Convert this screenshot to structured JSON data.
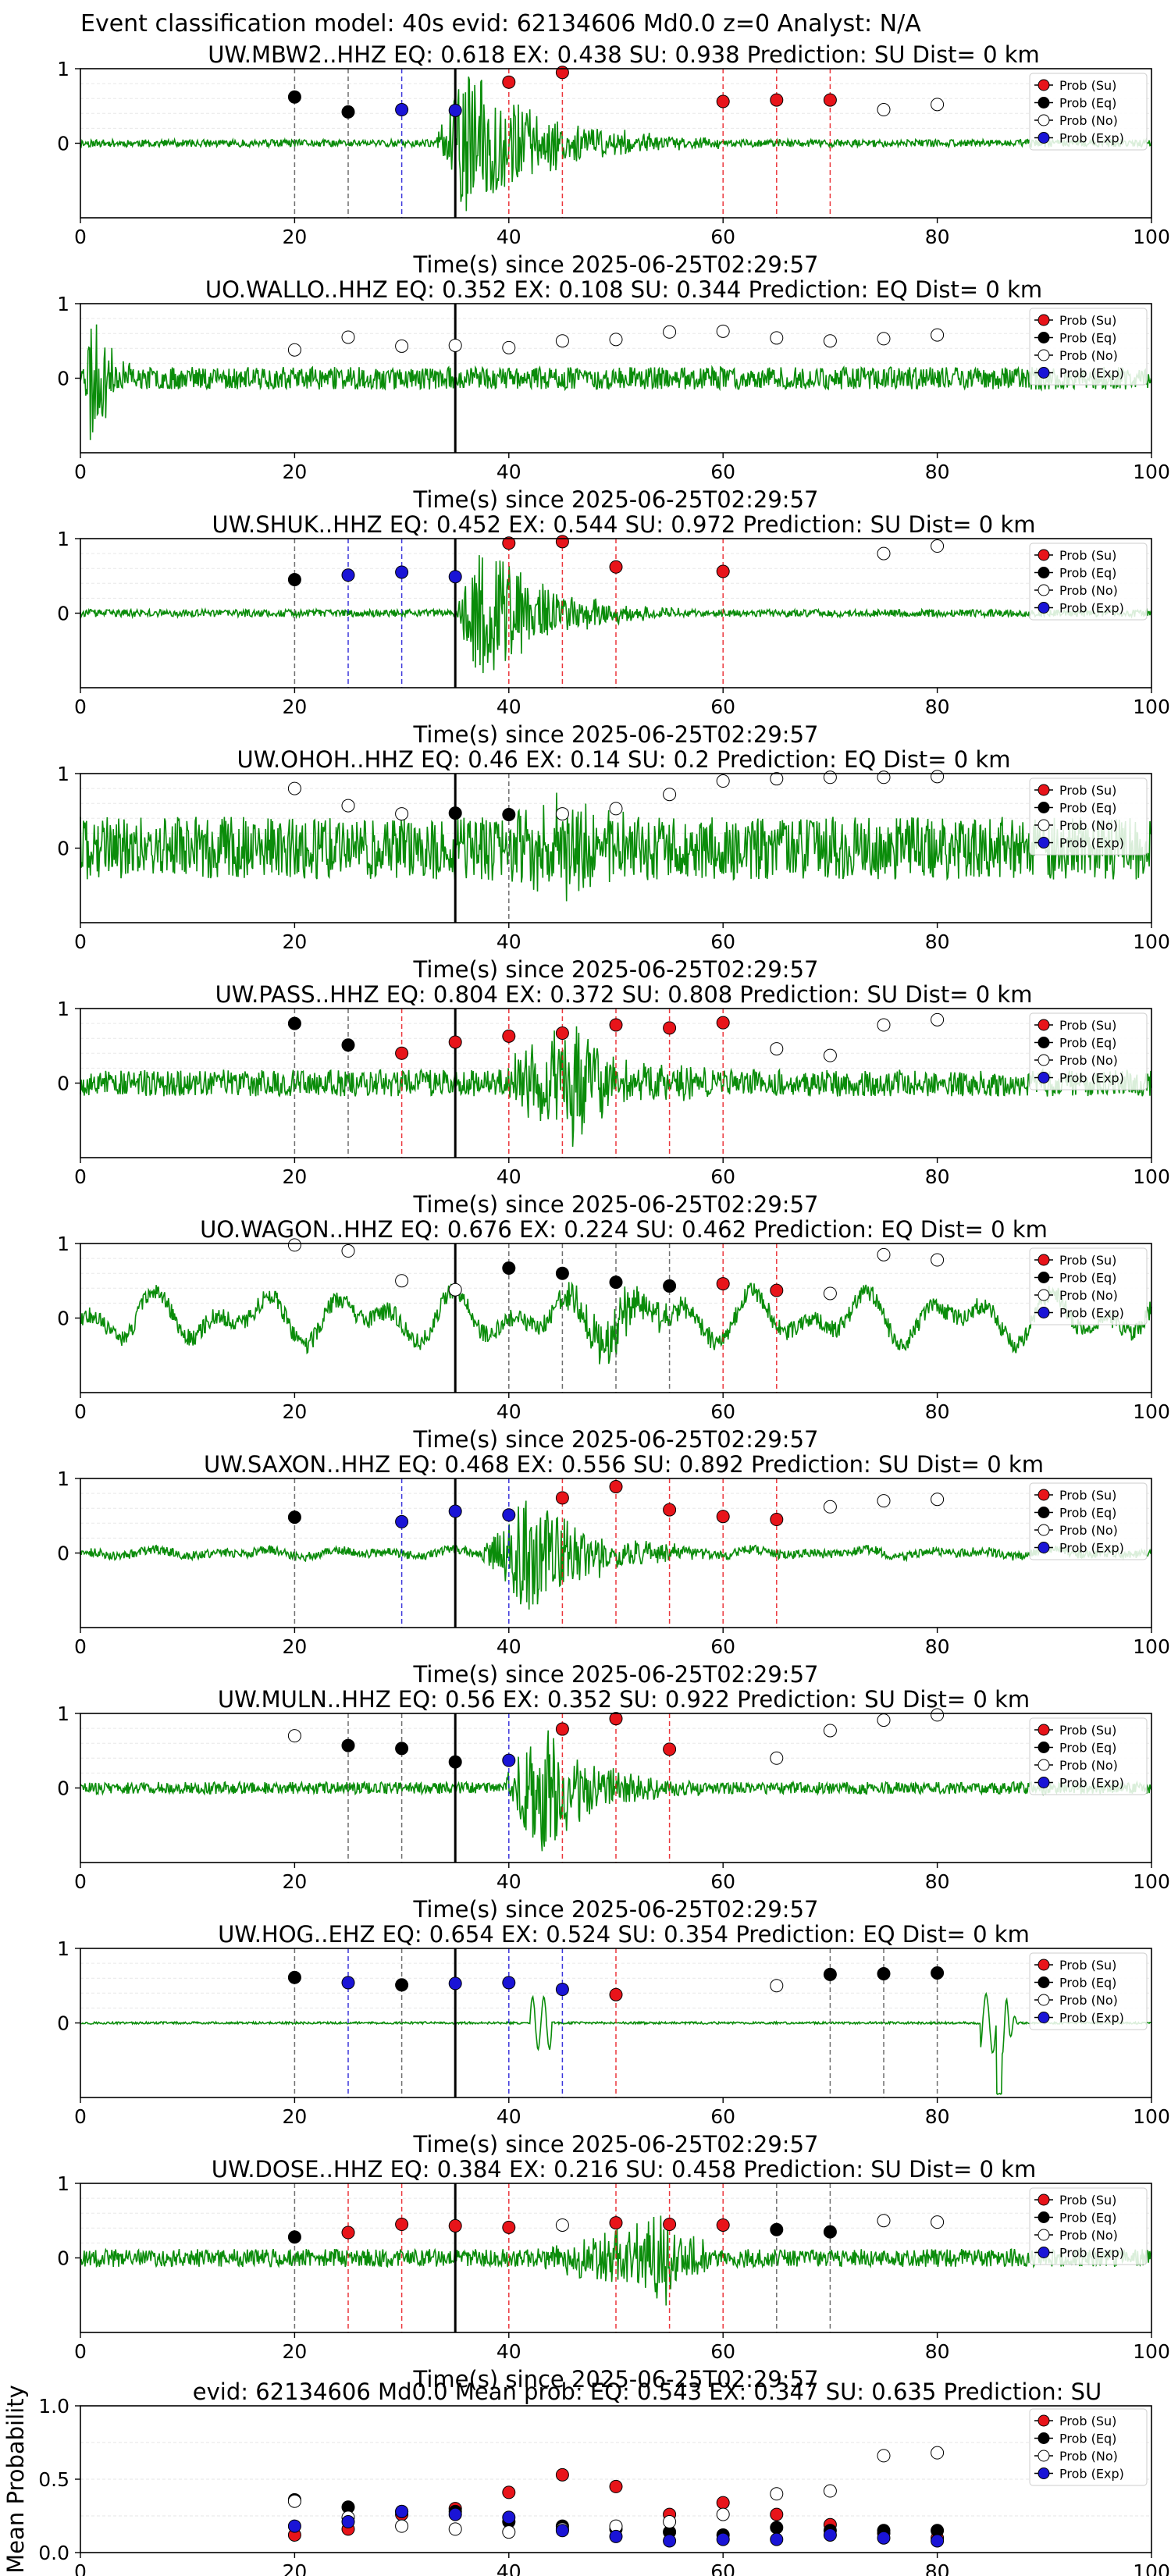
{
  "figure": {
    "title": "Event classification model: 40s evid: 62134606 Md0.0 z=0 Analyst: N/A",
    "xlabel": "Time(s) since 2025-06-25T02:29:57",
    "legend": [
      "Prob (Su)",
      "Prob (Eq)",
      "Prob (No)",
      "Prob (Exp)"
    ],
    "class_colors": {
      "su": "#e8141a",
      "eq": "#000000",
      "no": "#ffffff",
      "exp": "#1a14d6"
    },
    "trace_color": "#0a8c0a",
    "marker_line_color": "#000000"
  },
  "chart_data": [
    {
      "type": "line",
      "station": "UW.MBW2..HHZ",
      "title": "UW.MBW2..HHZ   EQ: 0.618  EX: 0.438  SU: 0.938   Prediction: SU    Dist= 0 km",
      "xlim": [
        0,
        100
      ],
      "xticks": [
        0,
        20,
        40,
        60,
        80,
        100
      ],
      "ylim": [
        -1,
        1
      ],
      "yticks": [
        0,
        1
      ],
      "grid": "horizontal",
      "legend_placement": "top-right",
      "onset_time": 35,
      "waveform": {
        "noise": 0.05,
        "burst_start": 33,
        "burst_peak": 36,
        "burst_end": 60,
        "burst_amp": 1.0,
        "seed": 11
      },
      "windows": [
        {
          "t": 20,
          "cls": "eq",
          "p": 0.62
        },
        {
          "t": 25,
          "cls": "eq",
          "p": 0.42
        },
        {
          "t": 30,
          "cls": "exp",
          "p": 0.45
        },
        {
          "t": 35,
          "cls": "exp",
          "p": 0.44
        },
        {
          "t": 40,
          "cls": "su",
          "p": 0.82
        },
        {
          "t": 45,
          "cls": "su",
          "p": 0.95
        },
        {
          "t": 60,
          "cls": "su",
          "p": 0.56
        },
        {
          "t": 65,
          "cls": "su",
          "p": 0.58
        },
        {
          "t": 70,
          "cls": "su",
          "p": 0.58
        },
        {
          "t": 75,
          "cls": "no",
          "p": 0.45
        },
        {
          "t": 80,
          "cls": "no",
          "p": 0.52
        }
      ]
    },
    {
      "type": "line",
      "station": "UO.WALLO..HHZ",
      "title": "UO.WALLO..HHZ   EQ: 0.352  EX: 0.108  SU: 0.344   Prediction: EQ    Dist= 0 km",
      "xlim": [
        0,
        100
      ],
      "xticks": [
        0,
        20,
        40,
        60,
        80,
        100
      ],
      "ylim": [
        -1,
        1
      ],
      "yticks": [
        0,
        1
      ],
      "grid": "horizontal",
      "legend_placement": "top-right",
      "onset_time": 35,
      "waveform": {
        "noise": 0.15,
        "burst_start": 0.3,
        "burst_peak": 1,
        "burst_end": 6,
        "burst_amp": 1.0,
        "seed": 23
      },
      "windows": [
        {
          "t": 20,
          "cls": "no",
          "p": 0.38
        },
        {
          "t": 25,
          "cls": "no",
          "p": 0.55
        },
        {
          "t": 30,
          "cls": "no",
          "p": 0.43
        },
        {
          "t": 35,
          "cls": "no",
          "p": 0.44
        },
        {
          "t": 40,
          "cls": "no",
          "p": 0.41
        },
        {
          "t": 45,
          "cls": "no",
          "p": 0.5
        },
        {
          "t": 50,
          "cls": "no",
          "p": 0.52
        },
        {
          "t": 55,
          "cls": "no",
          "p": 0.62
        },
        {
          "t": 60,
          "cls": "no",
          "p": 0.63
        },
        {
          "t": 65,
          "cls": "no",
          "p": 0.54
        },
        {
          "t": 70,
          "cls": "no",
          "p": 0.5
        },
        {
          "t": 75,
          "cls": "no",
          "p": 0.53
        },
        {
          "t": 80,
          "cls": "no",
          "p": 0.58
        }
      ]
    },
    {
      "type": "line",
      "station": "UW.SHUK..HHZ",
      "title": "UW.SHUK..HHZ   EQ: 0.452  EX: 0.544  SU: 0.972   Prediction: SU    Dist= 0 km",
      "xlim": [
        0,
        100
      ],
      "xticks": [
        0,
        20,
        40,
        60,
        80,
        100
      ],
      "ylim": [
        -1,
        1
      ],
      "yticks": [
        0,
        1
      ],
      "grid": "horizontal",
      "legend_placement": "top-right",
      "onset_time": 35,
      "waveform": {
        "noise": 0.05,
        "burst_start": 35,
        "burst_peak": 37.5,
        "burst_end": 56,
        "burst_amp": 1.0,
        "seed": 37
      },
      "windows": [
        {
          "t": 20,
          "cls": "eq",
          "p": 0.45
        },
        {
          "t": 25,
          "cls": "exp",
          "p": 0.51
        },
        {
          "t": 30,
          "cls": "exp",
          "p": 0.55
        },
        {
          "t": 35,
          "cls": "exp",
          "p": 0.49
        },
        {
          "t": 40,
          "cls": "su",
          "p": 0.94
        },
        {
          "t": 45,
          "cls": "su",
          "p": 0.96
        },
        {
          "t": 50,
          "cls": "su",
          "p": 0.62
        },
        {
          "t": 60,
          "cls": "su",
          "p": 0.56
        },
        {
          "t": 75,
          "cls": "no",
          "p": 0.8
        },
        {
          "t": 80,
          "cls": "no",
          "p": 0.9
        }
      ]
    },
    {
      "type": "line",
      "station": "UW.OHOH..HHZ",
      "title": "UW.OHOH..HHZ   EQ: 0.46  EX: 0.14  SU: 0.2   Prediction: EQ    Dist= 0 km",
      "xlim": [
        0,
        100
      ],
      "xticks": [
        0,
        20,
        40,
        60,
        80,
        100
      ],
      "ylim": [
        -1,
        1
      ],
      "yticks": [
        0,
        1
      ],
      "grid": "horizontal",
      "legend_placement": "top-right",
      "onset_time": 35,
      "waveform": {
        "noise": 0.42,
        "burst_start": 38,
        "burst_peak": 46,
        "burst_end": 55,
        "burst_amp": 0.45,
        "seed": 41
      },
      "windows": [
        {
          "t": 20,
          "cls": "no",
          "p": 0.8
        },
        {
          "t": 25,
          "cls": "no",
          "p": 0.57
        },
        {
          "t": 30,
          "cls": "no",
          "p": 0.46
        },
        {
          "t": 35,
          "cls": "eq",
          "p": 0.47
        },
        {
          "t": 40,
          "cls": "eq",
          "p": 0.45
        },
        {
          "t": 45,
          "cls": "no",
          "p": 0.46
        },
        {
          "t": 50,
          "cls": "no",
          "p": 0.53
        },
        {
          "t": 55,
          "cls": "no",
          "p": 0.72
        },
        {
          "t": 60,
          "cls": "no",
          "p": 0.9
        },
        {
          "t": 65,
          "cls": "no",
          "p": 0.93
        },
        {
          "t": 70,
          "cls": "no",
          "p": 0.95
        },
        {
          "t": 75,
          "cls": "no",
          "p": 0.95
        },
        {
          "t": 80,
          "cls": "no",
          "p": 0.96
        }
      ]
    },
    {
      "type": "line",
      "station": "UW.PASS..HHZ",
      "title": "UW.PASS..HHZ   EQ: 0.804  EX: 0.372  SU: 0.808   Prediction: SU    Dist= 0 km",
      "xlim": [
        0,
        100
      ],
      "xticks": [
        0,
        20,
        40,
        60,
        80,
        100
      ],
      "ylim": [
        -1,
        1
      ],
      "yticks": [
        0,
        1
      ],
      "grid": "horizontal",
      "legend_placement": "top-right",
      "onset_time": 35,
      "waveform": {
        "noise": 0.18,
        "burst_start": 38,
        "burst_peak": 46,
        "burst_end": 60,
        "burst_amp": 0.75,
        "seed": 53
      },
      "windows": [
        {
          "t": 20,
          "cls": "eq",
          "p": 0.8
        },
        {
          "t": 25,
          "cls": "eq",
          "p": 0.51
        },
        {
          "t": 30,
          "cls": "su",
          "p": 0.4
        },
        {
          "t": 35,
          "cls": "su",
          "p": 0.55
        },
        {
          "t": 40,
          "cls": "su",
          "p": 0.63
        },
        {
          "t": 45,
          "cls": "su",
          "p": 0.67
        },
        {
          "t": 50,
          "cls": "su",
          "p": 0.78
        },
        {
          "t": 55,
          "cls": "su",
          "p": 0.74
        },
        {
          "t": 60,
          "cls": "su",
          "p": 0.81
        },
        {
          "t": 65,
          "cls": "no",
          "p": 0.46
        },
        {
          "t": 70,
          "cls": "no",
          "p": 0.37
        },
        {
          "t": 75,
          "cls": "no",
          "p": 0.78
        },
        {
          "t": 80,
          "cls": "no",
          "p": 0.85
        }
      ]
    },
    {
      "type": "line",
      "station": "UO.WAGON..HHZ",
      "title": "UO.WAGON..HHZ   EQ: 0.676  EX: 0.224  SU: 0.462   Prediction: EQ    Dist= 0 km",
      "xlim": [
        0,
        100
      ],
      "xticks": [
        0,
        20,
        40,
        60,
        80,
        100
      ],
      "ylim": [
        -1,
        1
      ],
      "yticks": [
        0,
        1
      ],
      "grid": "horizontal",
      "legend_placement": "top-right",
      "onset_time": 35,
      "waveform": {
        "noise": 0.12,
        "wander": 0.38,
        "burst_start": 43,
        "burst_peak": 50,
        "burst_end": 62,
        "burst_amp": 0.35,
        "seed": 67
      },
      "windows": [
        {
          "t": 20,
          "cls": "no",
          "p": 0.98
        },
        {
          "t": 25,
          "cls": "no",
          "p": 0.9
        },
        {
          "t": 30,
          "cls": "no",
          "p": 0.5
        },
        {
          "t": 35,
          "cls": "no",
          "p": 0.38
        },
        {
          "t": 40,
          "cls": "eq",
          "p": 0.67
        },
        {
          "t": 45,
          "cls": "eq",
          "p": 0.6
        },
        {
          "t": 50,
          "cls": "eq",
          "p": 0.48
        },
        {
          "t": 55,
          "cls": "eq",
          "p": 0.43
        },
        {
          "t": 60,
          "cls": "su",
          "p": 0.46
        },
        {
          "t": 65,
          "cls": "su",
          "p": 0.37
        },
        {
          "t": 70,
          "cls": "no",
          "p": 0.33
        },
        {
          "t": 75,
          "cls": "no",
          "p": 0.85
        },
        {
          "t": 80,
          "cls": "no",
          "p": 0.78
        }
      ]
    },
    {
      "type": "line",
      "station": "UW.SAXON..HHZ",
      "title": "UW.SAXON..HHZ   EQ: 0.468  EX: 0.556  SU: 0.892   Prediction: SU    Dist= 0 km",
      "xlim": [
        0,
        100
      ],
      "xticks": [
        0,
        20,
        40,
        60,
        80,
        100
      ],
      "ylim": [
        -1,
        1
      ],
      "yticks": [
        0,
        1
      ],
      "grid": "horizontal",
      "legend_placement": "top-right",
      "onset_time": 35,
      "waveform": {
        "noise": 0.06,
        "wander": 0.05,
        "burst_start": 37,
        "burst_peak": 42,
        "burst_end": 60,
        "burst_amp": 0.8,
        "seed": 71
      },
      "windows": [
        {
          "t": 20,
          "cls": "eq",
          "p": 0.48
        },
        {
          "t": 30,
          "cls": "exp",
          "p": 0.42
        },
        {
          "t": 35,
          "cls": "exp",
          "p": 0.56
        },
        {
          "t": 40,
          "cls": "exp",
          "p": 0.51
        },
        {
          "t": 45,
          "cls": "su",
          "p": 0.74
        },
        {
          "t": 50,
          "cls": "su",
          "p": 0.89
        },
        {
          "t": 55,
          "cls": "su",
          "p": 0.58
        },
        {
          "t": 60,
          "cls": "su",
          "p": 0.49
        },
        {
          "t": 65,
          "cls": "su",
          "p": 0.45
        },
        {
          "t": 70,
          "cls": "no",
          "p": 0.62
        },
        {
          "t": 75,
          "cls": "no",
          "p": 0.7
        },
        {
          "t": 80,
          "cls": "no",
          "p": 0.72
        }
      ]
    },
    {
      "type": "line",
      "station": "UW.MULN..HHZ",
      "title": "UW.MULN..HHZ   EQ: 0.56  EX: 0.352  SU: 0.922   Prediction: SU    Dist= 0 km",
      "xlim": [
        0,
        100
      ],
      "xticks": [
        0,
        20,
        40,
        60,
        80,
        100
      ],
      "ylim": [
        -1,
        1
      ],
      "yticks": [
        0,
        1
      ],
      "grid": "horizontal",
      "legend_placement": "top-right",
      "onset_time": 35,
      "waveform": {
        "noise": 0.08,
        "burst_start": 39,
        "burst_peak": 43,
        "burst_end": 58,
        "burst_amp": 0.9,
        "seed": 83
      },
      "windows": [
        {
          "t": 20,
          "cls": "no",
          "p": 0.7
        },
        {
          "t": 25,
          "cls": "eq",
          "p": 0.57
        },
        {
          "t": 30,
          "cls": "eq",
          "p": 0.53
        },
        {
          "t": 35,
          "cls": "eq",
          "p": 0.35
        },
        {
          "t": 40,
          "cls": "exp",
          "p": 0.37
        },
        {
          "t": 45,
          "cls": "su",
          "p": 0.79
        },
        {
          "t": 50,
          "cls": "su",
          "p": 0.93
        },
        {
          "t": 55,
          "cls": "su",
          "p": 0.52
        },
        {
          "t": 65,
          "cls": "no",
          "p": 0.4
        },
        {
          "t": 70,
          "cls": "no",
          "p": 0.77
        },
        {
          "t": 75,
          "cls": "no",
          "p": 0.91
        },
        {
          "t": 80,
          "cls": "no",
          "p": 0.98
        }
      ]
    },
    {
      "type": "line",
      "station": "UW.HOG..EHZ",
      "title": "UW.HOG..EHZ   EQ: 0.654  EX: 0.524  SU: 0.354   Prediction: EQ    Dist= 0 km",
      "xlim": [
        0,
        100
      ],
      "xticks": [
        0,
        20,
        40,
        60,
        80,
        100
      ],
      "ylim": [
        -1,
        1
      ],
      "yticks": [
        0,
        1
      ],
      "grid": "horizontal",
      "legend_placement": "top-right",
      "onset_time": 35,
      "waveform": {
        "noise": 0.015,
        "wiggle_time": 43,
        "glitch_time": 85.5,
        "seed": 97
      },
      "windows": [
        {
          "t": 20,
          "cls": "eq",
          "p": 0.61
        },
        {
          "t": 25,
          "cls": "exp",
          "p": 0.54
        },
        {
          "t": 30,
          "cls": "eq",
          "p": 0.51
        },
        {
          "t": 35,
          "cls": "exp",
          "p": 0.53
        },
        {
          "t": 40,
          "cls": "exp",
          "p": 0.54
        },
        {
          "t": 45,
          "cls": "exp",
          "p": 0.45
        },
        {
          "t": 50,
          "cls": "su",
          "p": 0.38
        },
        {
          "t": 65,
          "cls": "no",
          "p": 0.5
        },
        {
          "t": 70,
          "cls": "eq",
          "p": 0.65
        },
        {
          "t": 75,
          "cls": "eq",
          "p": 0.66
        },
        {
          "t": 80,
          "cls": "eq",
          "p": 0.67
        }
      ]
    },
    {
      "type": "line",
      "station": "UW.DOSE..HHZ",
      "title": "UW.DOSE..HHZ   EQ: 0.384  EX: 0.216  SU: 0.458   Prediction: SU    Dist= 0 km",
      "xlim": [
        0,
        100
      ],
      "xticks": [
        0,
        20,
        40,
        60,
        80,
        100
      ],
      "ylim": [
        -1,
        1
      ],
      "yticks": [
        0,
        1
      ],
      "grid": "horizontal",
      "legend_placement": "top-right",
      "onset_time": 35,
      "waveform": {
        "noise": 0.12,
        "burst_start": 42,
        "burst_peak": 55,
        "burst_end": 62,
        "burst_amp": 0.55,
        "seed": 101
      },
      "windows": [
        {
          "t": 20,
          "cls": "eq",
          "p": 0.28
        },
        {
          "t": 25,
          "cls": "su",
          "p": 0.34
        },
        {
          "t": 30,
          "cls": "su",
          "p": 0.45
        },
        {
          "t": 35,
          "cls": "su",
          "p": 0.43
        },
        {
          "t": 40,
          "cls": "su",
          "p": 0.41
        },
        {
          "t": 45,
          "cls": "no",
          "p": 0.44
        },
        {
          "t": 50,
          "cls": "su",
          "p": 0.47
        },
        {
          "t": 55,
          "cls": "su",
          "p": 0.45
        },
        {
          "t": 60,
          "cls": "su",
          "p": 0.44
        },
        {
          "t": 65,
          "cls": "eq",
          "p": 0.38
        },
        {
          "t": 70,
          "cls": "eq",
          "p": 0.35
        },
        {
          "t": 75,
          "cls": "no",
          "p": 0.5
        },
        {
          "t": 80,
          "cls": "no",
          "p": 0.48
        }
      ]
    },
    {
      "type": "scatter",
      "title": "evid: 62134606   Md0.0   Mean prob:   EQ: 0.543  EX: 0.347  SU: 0.635   Prediction: SU",
      "ylabel": "Mean Probability",
      "xlim": [
        0,
        100
      ],
      "xticks": [
        0,
        20,
        40,
        60,
        80,
        100
      ],
      "ylim": [
        0,
        1
      ],
      "yticks": [
        0,
        0.5,
        1
      ],
      "ytick_labels": [
        "0.0",
        "0.5",
        "1.0"
      ],
      "grid": "horizontal",
      "legend_placement": "top-right",
      "x": [
        20,
        25,
        30,
        35,
        40,
        45,
        50,
        55,
        60,
        65,
        70,
        75,
        80
      ],
      "series": [
        {
          "name": "Prob (Su)",
          "cls": "su",
          "values": [
            0.12,
            0.16,
            0.26,
            0.3,
            0.41,
            0.53,
            0.45,
            0.26,
            0.34,
            0.26,
            0.19,
            0.13,
            0.1
          ]
        },
        {
          "name": "Prob (Eq)",
          "cls": "eq",
          "values": [
            0.36,
            0.31,
            0.28,
            0.28,
            0.21,
            0.18,
            0.16,
            0.14,
            0.12,
            0.17,
            0.15,
            0.15,
            0.15
          ]
        },
        {
          "name": "Prob (No)",
          "cls": "no",
          "values": [
            0.35,
            0.24,
            0.18,
            0.16,
            0.14,
            0.16,
            0.18,
            0.21,
            0.26,
            0.4,
            0.42,
            0.66,
            0.68
          ]
        },
        {
          "name": "Prob (Exp)",
          "cls": "exp",
          "values": [
            0.18,
            0.21,
            0.28,
            0.26,
            0.24,
            0.15,
            0.11,
            0.08,
            0.09,
            0.09,
            0.12,
            0.1,
            0.08
          ]
        }
      ]
    }
  ]
}
